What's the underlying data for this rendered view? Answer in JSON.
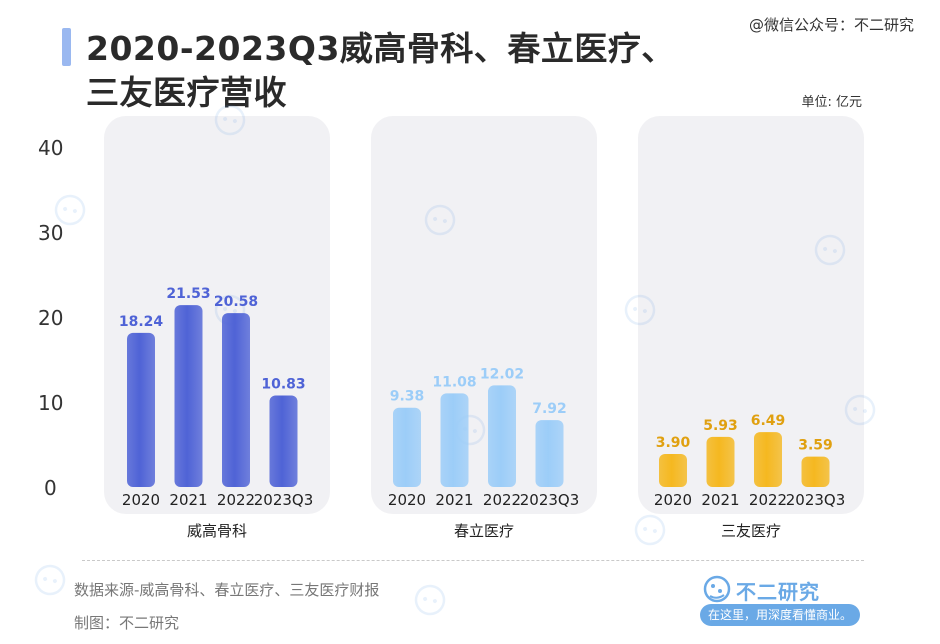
{
  "title_line1": "2020-2023Q3威高骨科、春立医疗、",
  "title_line2": "三友医疗营收",
  "watermark_source": "@微信公众号：不二研究",
  "unit_label": "单位: 亿元",
  "footer": {
    "source": "数据来源-威高骨科、春立医疗、三友医疗财报",
    "maker": "制图：不二研究",
    "brand_name": "不二研究",
    "brand_slogan": "在这里，用深度看懂商业。"
  },
  "colors": {
    "weigao": "#4f63d6",
    "chunli": "#9ccdf8",
    "sanyou": "#f5b820"
  },
  "chart_data": {
    "type": "bar",
    "ylim": [
      0,
      40
    ],
    "yticks": [
      0,
      10,
      20,
      30,
      40
    ],
    "groups": [
      {
        "name": "威高骨科",
        "categories": [
          "2020",
          "2021",
          "2022",
          "2023Q3"
        ],
        "values": [
          18.24,
          21.53,
          20.58,
          10.83
        ],
        "labels": [
          "18.24",
          "21.53",
          "20.58",
          "10.83"
        ]
      },
      {
        "name": "春立医疗",
        "categories": [
          "2020",
          "2021",
          "2022",
          "2023Q3"
        ],
        "values": [
          9.38,
          11.08,
          12.02,
          7.92
        ],
        "labels": [
          "9.38",
          "11.08",
          "12.02",
          "7.92"
        ]
      },
      {
        "name": "三友医疗",
        "categories": [
          "2020",
          "2021",
          "2022",
          "2023Q3"
        ],
        "values": [
          3.9,
          5.93,
          6.49,
          3.59
        ],
        "labels": [
          "3.90",
          "5.93",
          "6.49",
          "3.59"
        ]
      }
    ]
  }
}
